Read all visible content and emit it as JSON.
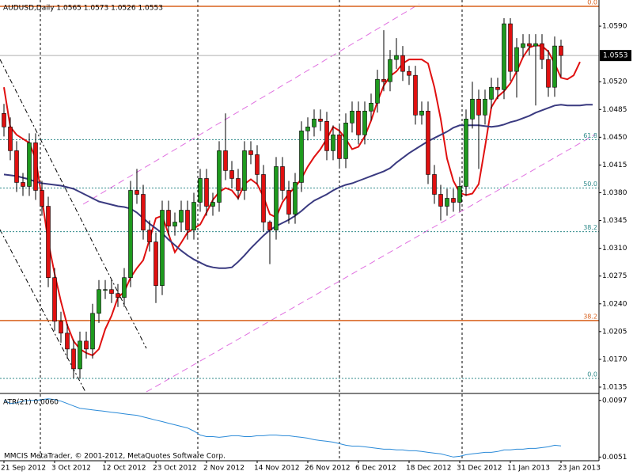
{
  "chart_data": [
    {
      "type": "candlestick",
      "title": "AUDUSD,Daily  1.0565 1.0573 1.0526 1.0553",
      "categories": [
        "21 Sep 2012",
        null,
        null,
        null,
        null,
        null,
        null,
        null,
        "3 Oct 2012",
        null,
        null,
        null,
        null,
        null,
        null,
        null,
        "12 Oct 2012",
        null,
        null,
        null,
        null,
        null,
        null,
        null,
        "23 Oct 2012",
        null,
        null,
        null,
        null,
        null,
        null,
        null,
        "2 Nov 2012",
        null,
        null,
        null,
        null,
        null,
        null,
        null,
        "14 Nov 2012",
        null,
        null,
        null,
        null,
        null,
        null,
        null,
        "26 Nov 2012",
        null,
        null,
        null,
        null,
        null,
        null,
        null,
        "6 Dec 2012",
        null,
        null,
        null,
        null,
        null,
        null,
        null,
        "18 Dec 2012",
        null,
        null,
        null,
        null,
        null,
        null,
        null,
        "31 Dec 2012",
        null,
        null,
        null,
        null,
        null,
        null,
        null,
        "11 Jan 2013",
        null,
        null,
        null,
        null,
        null,
        null,
        null,
        "23 Jan 2013",
        null,
        null,
        null,
        null,
        null
      ],
      "open": [
        1.048,
        1.0463,
        1.0433,
        1.0393,
        1.0388,
        1.0443,
        1.0383,
        1.0363,
        1.0273,
        1.0218,
        1.0203,
        1.0183,
        1.0158,
        1.0193,
        1.0183,
        1.0228,
        1.0258,
        1.0258,
        1.0253,
        1.0248,
        1.0273,
        1.0383,
        1.0378,
        1.0333,
        1.0318,
        1.0263,
        1.0358,
        1.0338,
        1.0343,
        1.0358,
        1.0333,
        1.0368,
        1.0398,
        1.0363,
        1.0368,
        1.0433,
        1.0408,
        1.0398,
        1.0383,
        1.0433,
        1.0428,
        1.0403,
        1.0343,
        1.0333,
        1.0413,
        1.0383,
        1.0353,
        1.0393,
        1.0458,
        1.0463,
        1.0473,
        1.047,
        1.0433,
        1.0453,
        1.0423,
        1.0468,
        1.0483,
        1.0453,
        1.0483,
        1.0493,
        1.0523,
        1.052,
        1.0548,
        1.0553,
        1.0533,
        1.0528,
        1.0478,
        1.0483,
        1.0403,
        1.0378,
        1.0363,
        1.0373,
        1.0368,
        1.0388,
        1.0473,
        1.0498,
        1.0478,
        1.0498,
        1.0513,
        1.051,
        1.0593,
        1.0533,
        1.0563,
        1.0568,
        1.0565,
        1.0568,
        1.0548,
        1.0513,
        1.0565,
        null,
        null,
        null,
        null,
        null
      ],
      "high": [
        1.0492,
        1.0475,
        1.0445,
        1.0405,
        1.0455,
        1.0455,
        1.0395,
        1.0375,
        1.0285,
        1.023,
        1.0215,
        1.0195,
        1.0205,
        1.0205,
        1.024,
        1.027,
        1.027,
        1.027,
        1.0265,
        1.0285,
        1.0395,
        1.041,
        1.039,
        1.0345,
        1.033,
        1.037,
        1.037,
        1.0355,
        1.037,
        1.037,
        1.038,
        1.041,
        1.041,
        1.038,
        1.0445,
        1.048,
        1.042,
        1.041,
        1.0445,
        1.0445,
        1.044,
        1.0415,
        1.0345,
        1.0425,
        1.0425,
        1.0395,
        1.0405,
        1.047,
        1.0475,
        1.0485,
        1.0485,
        1.0482,
        1.0465,
        1.0465,
        1.048,
        1.0495,
        1.0495,
        1.0495,
        1.0505,
        1.0535,
        1.0585,
        1.056,
        1.0575,
        1.0565,
        1.054,
        1.054,
        1.0495,
        1.0495,
        1.0415,
        1.039,
        1.0385,
        1.0385,
        1.04,
        1.0485,
        1.052,
        1.051,
        1.051,
        1.0525,
        1.0525,
        1.06,
        1.06,
        1.0575,
        1.058,
        1.058,
        1.058,
        1.058,
        1.056,
        1.0577,
        1.0573,
        null,
        null,
        null,
        null,
        null
      ],
      "low": [
        1.0451,
        1.0421,
        1.0381,
        1.0376,
        1.0376,
        1.0371,
        1.0351,
        1.0261,
        1.0206,
        1.0191,
        1.0171,
        1.0146,
        1.0146,
        1.0171,
        1.0171,
        1.0216,
        1.0246,
        1.0241,
        1.0236,
        1.0236,
        1.0261,
        1.0366,
        1.0321,
        1.0306,
        1.0241,
        1.0251,
        1.0326,
        1.0326,
        1.0331,
        1.0321,
        1.0321,
        1.0356,
        1.0351,
        1.0351,
        1.0356,
        1.0396,
        1.0386,
        1.0371,
        1.0371,
        1.0416,
        1.0391,
        1.0331,
        1.029,
        1.0321,
        1.0371,
        1.0341,
        1.0341,
        1.0381,
        1.0446,
        1.0451,
        1.0458,
        1.0421,
        1.0421,
        1.0411,
        1.0411,
        1.0456,
        1.0441,
        1.0441,
        1.0471,
        1.0481,
        1.0508,
        1.0508,
        1.0536,
        1.0521,
        1.0516,
        1.0466,
        1.0466,
        1.0391,
        1.0366,
        1.0345,
        1.0351,
        1.0356,
        1.0356,
        1.0376,
        1.0461,
        1.041,
        1.0466,
        1.0486,
        1.0498,
        1.0498,
        1.0521,
        1.05,
        1.0551,
        1.0553,
        1.049,
        1.0536,
        1.0501,
        1.0501,
        1.0526,
        null,
        null,
        null,
        null,
        null
      ],
      "close": [
        1.0463,
        1.0433,
        1.0393,
        1.0388,
        1.0443,
        1.0383,
        1.0363,
        1.0273,
        1.0218,
        1.0203,
        1.0183,
        1.0158,
        1.0193,
        1.0183,
        1.0228,
        1.0258,
        1.0258,
        1.0253,
        1.0248,
        1.0273,
        1.0383,
        1.0378,
        1.0333,
        1.0318,
        1.0263,
        1.0358,
        1.0338,
        1.0343,
        1.0358,
        1.0333,
        1.0368,
        1.0398,
        1.0363,
        1.0368,
        1.0433,
        1.0408,
        1.0398,
        1.0383,
        1.0433,
        1.0428,
        1.0403,
        1.0343,
        1.0333,
        1.0413,
        1.0383,
        1.0353,
        1.0393,
        1.0458,
        1.0463,
        1.0473,
        1.047,
        1.0433,
        1.0453,
        1.0423,
        1.0468,
        1.0483,
        1.0453,
        1.0483,
        1.0493,
        1.0523,
        1.052,
        1.0548,
        1.0553,
        1.0533,
        1.0528,
        1.0478,
        1.0483,
        1.0403,
        1.0378,
        1.0363,
        1.0373,
        1.0368,
        1.0388,
        1.0473,
        1.0498,
        1.0478,
        1.0498,
        1.0513,
        1.051,
        1.0593,
        1.0533,
        1.0563,
        1.0568,
        1.0565,
        1.0568,
        1.0548,
        1.0513,
        1.0565,
        1.0553,
        null,
        null,
        null,
        null,
        null
      ],
      "up_color": "#1e9a1e",
      "down_color": "#e01010",
      "wick_color": "#000000",
      "series": [
        {
          "color": "#e01010",
          "values": [
            1.0513,
            1.0463,
            1.0453,
            1.0448,
            1.0443,
            1.0423,
            1.0373,
            1.0318,
            1.0278,
            1.0243,
            1.0213,
            1.0193,
            1.0183,
            1.0178,
            1.0175,
            1.0183,
            1.0208,
            1.0225,
            1.0248,
            1.0255,
            1.0273,
            1.0285,
            1.0295,
            1.0321,
            1.0348,
            1.0351,
            1.0328,
            1.0305,
            1.0317,
            1.033,
            1.0335,
            1.034,
            1.0355,
            1.0371,
            1.0381,
            1.0386,
            1.0383,
            1.0373,
            1.0391,
            1.0397,
            1.0391,
            1.0375,
            1.0353,
            1.0349,
            1.0368,
            1.0379,
            1.0387,
            1.0398,
            1.0413,
            1.0425,
            1.0435,
            1.0448,
            1.0463,
            1.0458,
            1.0448,
            1.0435,
            1.0438,
            1.0451,
            1.0471,
            1.0495,
            1.0515,
            1.0527,
            1.0533,
            1.0543,
            1.0548,
            1.0548,
            1.0548,
            1.0543,
            1.0513,
            1.0473,
            1.0423,
            1.0395,
            1.038,
            1.0377,
            1.0379,
            1.0391,
            1.0438,
            1.0488,
            1.0501,
            1.0508,
            1.0518,
            1.0533,
            1.0551,
            1.0563,
            1.0566,
            1.0565,
            1.0558,
            1.0543,
            1.0525,
            1.0523,
            1.0528,
            1.0545,
            null,
            null
          ]
        },
        {
          "color": "#3a3a80",
          "values": [
            1.0403,
            1.0402,
            1.0401,
            1.0399,
            1.0397,
            1.0394,
            1.0392,
            1.0391,
            1.039,
            1.0389,
            1.0387,
            1.0385,
            1.0381,
            1.0377,
            1.0373,
            1.0369,
            1.0367,
            1.0365,
            1.0363,
            1.0362,
            1.036,
            1.0355,
            1.0348,
            1.0341,
            1.0335,
            1.0329,
            1.0321,
            1.0314,
            1.0307,
            1.0301,
            1.0296,
            1.0292,
            1.0288,
            1.0286,
            1.0285,
            1.0285,
            1.0286,
            1.0293,
            1.0301,
            1.031,
            1.0318,
            1.0326,
            1.0333,
            1.0338,
            1.0342,
            1.0346,
            1.0351,
            1.0357,
            1.0364,
            1.037,
            1.0374,
            1.0378,
            1.0383,
            1.0387,
            1.039,
            1.0392,
            1.0395,
            1.0398,
            1.0401,
            1.0404,
            1.0407,
            1.0411,
            1.0418,
            1.0424,
            1.043,
            1.0435,
            1.044,
            1.0445,
            1.0449,
            1.0453,
            1.0457,
            1.0462,
            1.0465,
            1.0465,
            1.0465,
            1.0465,
            1.0464,
            1.0463,
            1.0464,
            1.0466,
            1.0469,
            1.0471,
            1.0474,
            1.0477,
            1.0481,
            1.0484,
            1.0487,
            1.049,
            1.0491,
            1.049,
            1.049,
            1.049,
            1.0491,
            1.0491
          ]
        }
      ],
      "levels": [
        {
          "label": "0.0",
          "value": 1.0615,
          "color": "#d8601c",
          "style": "solid"
        },
        {
          "label": "38.2",
          "value": 1.0219,
          "color": "#d8601c",
          "style": "solid"
        },
        {
          "label": "61.8",
          "value": 1.0447,
          "color": "#2f8a8a",
          "style": "dotted"
        },
        {
          "label": "50.0",
          "value": 1.0386,
          "color": "#2f8a8a",
          "style": "dotted"
        },
        {
          "label": "38.2",
          "value": 1.0331,
          "color": "#2f8a8a",
          "style": "dotted"
        },
        {
          "label": "0.0",
          "value": 1.0146,
          "color": "#2f8a8a",
          "style": "dotted"
        }
      ],
      "ylim": [
        1.0128,
        1.0621
      ],
      "yticks": [
        {
          "value": 1.059,
          "label": "1.0590"
        },
        {
          "value": 1.052,
          "label": "1.0520"
        },
        1.0485,
        {
          "value": 1.045,
          "label": "1.0450"
        },
        1.0415,
        {
          "value": 1.038,
          "label": "1.0380"
        },
        1.0345,
        {
          "value": 1.031,
          "label": "1.0310"
        },
        1.0275,
        {
          "value": 1.024,
          "label": "1.0240"
        },
        1.0205,
        {
          "value": 1.017,
          "label": "1.0170"
        },
        1.0135
      ]
    },
    {
      "type": "line",
      "title": "ATR(21) 0.0060",
      "series": [
        {
          "color": "#2a8ad8",
          "values": [
            0.0097,
            0.00945,
            0.00951,
            0.00964,
            0.0097,
            0.0097,
            0.00976,
            0.00983,
            0.00976,
            0.00964,
            0.00945,
            0.00925,
            0.00906,
            0.009,
            0.00893,
            0.00887,
            0.00881,
            0.00874,
            0.00868,
            0.00861,
            0.00855,
            0.00849,
            0.00836,
            0.00823,
            0.0081,
            0.00798,
            0.00785,
            0.00772,
            0.00759,
            0.00746,
            0.00721,
            0.00689,
            0.00676,
            0.00676,
            0.0067,
            0.00676,
            0.00683,
            0.00683,
            0.00676,
            0.00676,
            0.00683,
            0.00683,
            0.00689,
            0.00689,
            0.00683,
            0.00683,
            0.00676,
            0.0067,
            0.00663,
            0.00651,
            0.00644,
            0.00638,
            0.00631,
            0.00619,
            0.00606,
            0.00599,
            0.00599,
            0.00593,
            0.00587,
            0.0058,
            0.00574,
            0.00574,
            0.00568,
            0.00568,
            0.00561,
            0.00561,
            0.00555,
            0.00548,
            0.00542,
            0.00536,
            0.00523,
            0.0051,
            0.00516,
            0.00529,
            0.00536,
            0.00542,
            0.00548,
            0.00548,
            0.00555,
            0.00568,
            0.00568,
            0.00574,
            0.00574,
            0.0058,
            0.0058,
            0.00587,
            0.00593,
            0.00606,
            0.006,
            null,
            null,
            null,
            null,
            null
          ]
        }
      ],
      "ylim": [
        0.0048,
        0.0102
      ],
      "yticks": [
        0.0097,
        0.0051
      ]
    }
  ],
  "footer": "MMCIS MetaTrader, © 2001-2012, MetaQuotes Software Corp."
}
